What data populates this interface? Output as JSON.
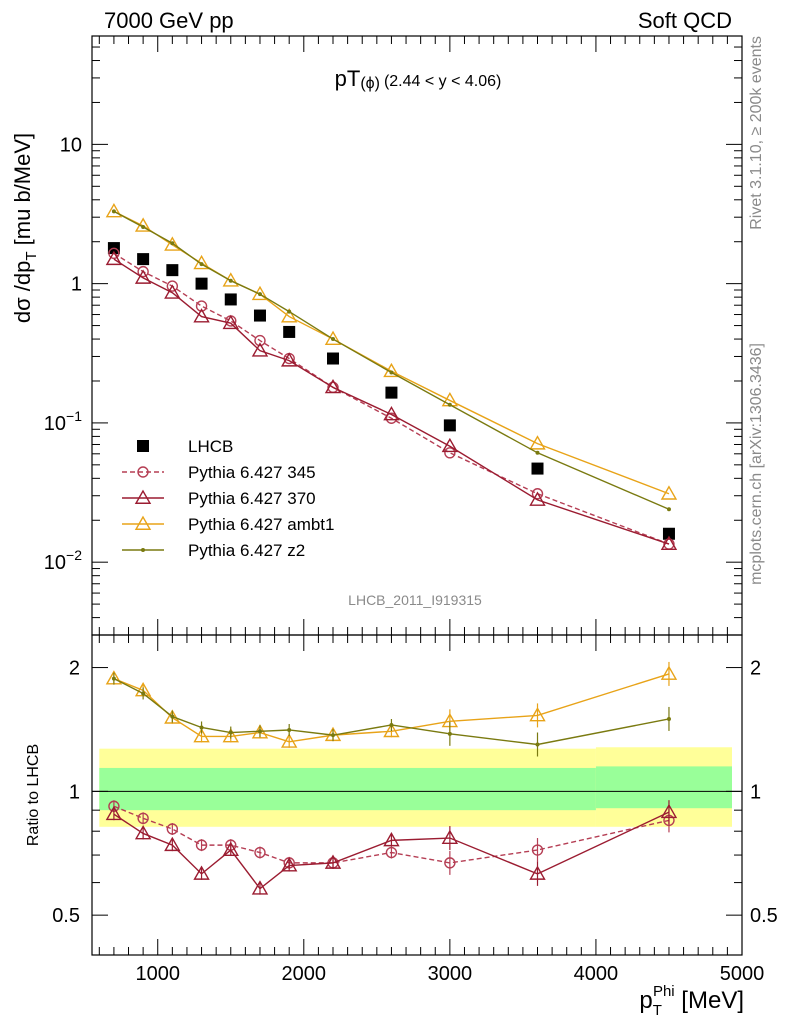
{
  "header": {
    "left": "7000 GeV pp",
    "right": "Soft QCD"
  },
  "side": {
    "rivet": "Rivet 3.1.10, ≥ 200k events",
    "mcplots": "mcplots.cern.ch [arXiv:1306.3436]"
  },
  "plot": {
    "title_main": "pT",
    "title_sub": "(ϕ)",
    "title_range": "(2.44 < y < 4.06)",
    "ylabel_main": "dσ /dp",
    "ylabel_sub": "T",
    "ylabel_unit": " [mu b/MeV]",
    "watermark": "LHCB_2011_I919315",
    "ratio_ylabel": "Ratio to LHCB",
    "xlabel_main": "p",
    "xlabel_sub": "T",
    "xlabel_sup": "Phi",
    "xlabel_unit": " [MeV]"
  },
  "chart_data": {
    "type": "scatter",
    "x": [
      700,
      900,
      1100,
      1300,
      1500,
      1700,
      1900,
      2200,
      2600,
      3000,
      3600,
      4500
    ],
    "xlim": [
      550,
      5000
    ],
    "ylim": [
      0.003,
      60
    ],
    "yscale": "log",
    "ratio_ylim": [
      0.4,
      2.4
    ],
    "ratio_ticks": [
      0.5,
      1,
      2
    ],
    "series": [
      {
        "name": "LHCB",
        "color": "#000000",
        "marker": "square",
        "values": [
          1.8,
          1.5,
          1.25,
          1.0,
          0.77,
          0.59,
          0.45,
          0.29,
          0.165,
          0.096,
          0.047,
          0.016
        ]
      },
      {
        "name": "Pythia 6.427 345",
        "color": "#b53e54",
        "marker": "circle",
        "dashed": true,
        "values": [
          1.65,
          1.22,
          0.96,
          0.69,
          0.54,
          0.39,
          0.29,
          0.18,
          0.108,
          0.061,
          0.031,
          0.0135
        ],
        "ratio": [
          0.92,
          0.86,
          0.81,
          0.74,
          0.74,
          0.71,
          0.67,
          0.67,
          0.71,
          0.67,
          0.72,
          0.85
        ]
      },
      {
        "name": "Pythia 6.427 370",
        "color": "#9b1c31",
        "marker": "triangle",
        "values": [
          1.5,
          1.1,
          0.86,
          0.58,
          0.52,
          0.33,
          0.28,
          0.18,
          0.115,
          0.068,
          0.028,
          0.0135
        ],
        "ratio": [
          0.88,
          0.79,
          0.74,
          0.63,
          0.72,
          0.58,
          0.66,
          0.67,
          0.76,
          0.77,
          0.63,
          0.89
        ]
      },
      {
        "name": "Pythia 6.427 ambt1",
        "color": "#e8a318",
        "marker": "triangle",
        "values": [
          3.3,
          2.6,
          1.9,
          1.4,
          1.05,
          0.84,
          0.58,
          0.4,
          0.235,
          0.145,
          0.071,
          0.031
        ],
        "ratio": [
          1.88,
          1.76,
          1.51,
          1.36,
          1.36,
          1.39,
          1.32,
          1.37,
          1.4,
          1.48,
          1.53,
          1.93
        ]
      },
      {
        "name": "Pythia 6.427 z2",
        "color": "#7a7a10",
        "marker": "dot",
        "values": [
          3.3,
          2.55,
          1.95,
          1.38,
          1.05,
          0.84,
          0.63,
          0.4,
          0.23,
          0.135,
          0.061,
          0.024
        ],
        "ratio": [
          1.88,
          1.73,
          1.52,
          1.43,
          1.39,
          1.4,
          1.41,
          1.37,
          1.45,
          1.38,
          1.3,
          1.5
        ]
      }
    ],
    "ratio_bands": [
      {
        "x": [
          600,
          4000
        ],
        "inner": [
          0.9,
          1.14
        ],
        "outer": [
          0.82,
          1.27
        ]
      },
      {
        "x": [
          4000,
          5000
        ],
        "inner": [
          0.91,
          1.15
        ],
        "outer": [
          0.82,
          1.28
        ]
      }
    ]
  }
}
